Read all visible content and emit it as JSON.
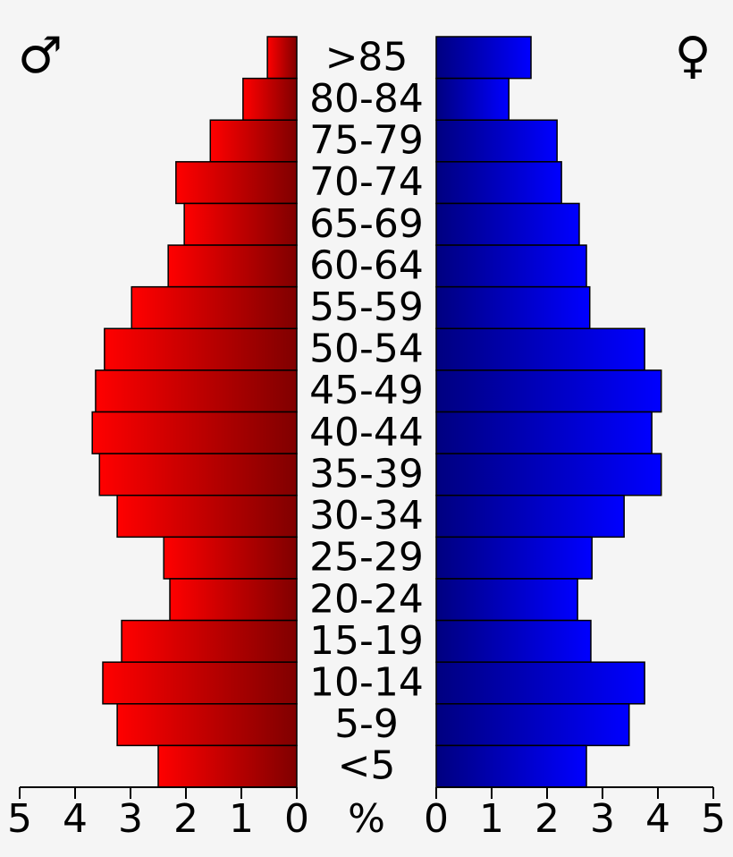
{
  "chart_data": {
    "type": "pyramid",
    "categories": [
      ">85",
      "80-84",
      "75-79",
      "70-74",
      "65-69",
      "60-64",
      "55-59",
      "50-54",
      "45-49",
      "40-44",
      "35-39",
      "30-34",
      "25-29",
      "20-24",
      "15-19",
      "10-14",
      "5-9",
      "<5"
    ],
    "unit_label": "%",
    "series": [
      {
        "name": "♂",
        "side": "left",
        "gradient": [
          "#ff0000",
          "#800000"
        ],
        "xlim": [
          0,
          5
        ],
        "xticks": [
          5,
          4,
          3,
          2,
          1,
          0
        ],
        "values": [
          0.53,
          0.97,
          1.56,
          2.18,
          2.03,
          2.32,
          2.98,
          3.47,
          3.63,
          3.69,
          3.56,
          3.24,
          2.4,
          2.29,
          3.16,
          3.5,
          3.24,
          2.5
        ]
      },
      {
        "name": "♀",
        "side": "right",
        "gradient": [
          "#000080",
          "#0000ff"
        ],
        "xlim": [
          0,
          5
        ],
        "xticks": [
          0,
          1,
          2,
          3,
          4,
          5
        ],
        "values": [
          1.71,
          1.31,
          2.18,
          2.26,
          2.58,
          2.71,
          2.77,
          3.76,
          4.06,
          3.89,
          4.06,
          3.39,
          2.81,
          2.55,
          2.79,
          3.76,
          3.48,
          2.71
        ]
      }
    ]
  }
}
